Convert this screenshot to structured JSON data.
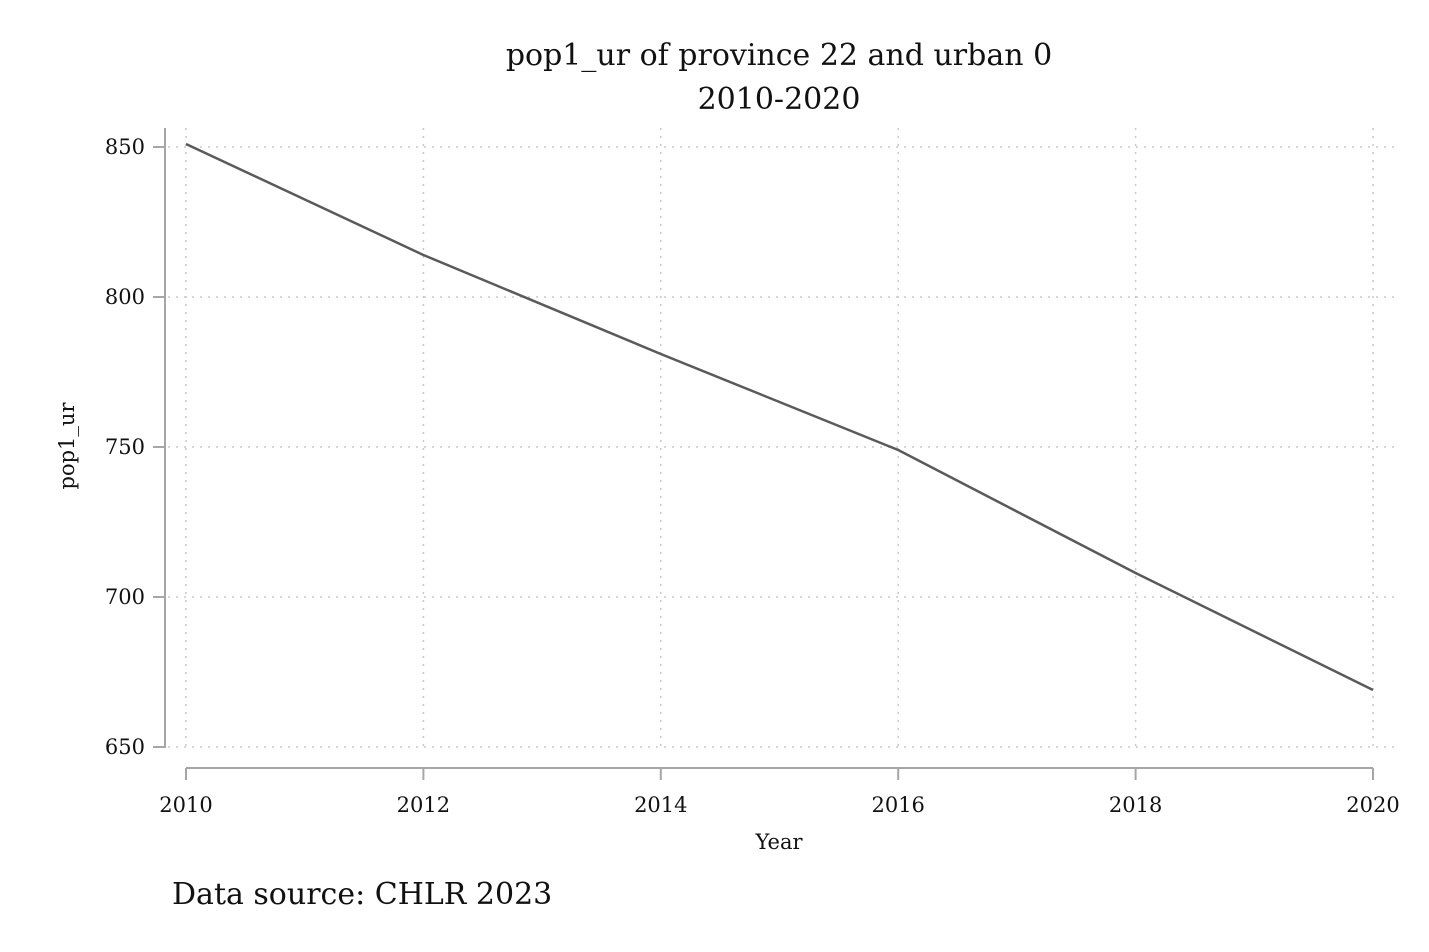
{
  "chart_data": {
    "type": "line",
    "title": "pop1_ur of province 22 and urban 0",
    "subtitle": "2010-2020",
    "xlabel": "Year",
    "ylabel": "pop1_ur",
    "xlim": [
      2010,
      2020
    ],
    "ylim": [
      650,
      850
    ],
    "x_ticks": [
      2010,
      2012,
      2014,
      2016,
      2018,
      2020
    ],
    "y_ticks": [
      650,
      700,
      750,
      800,
      850
    ],
    "grid": true,
    "series": [
      {
        "name": "pop1_ur",
        "color": "#5a5a5a",
        "x": [
          2010,
          2012,
          2014,
          2016,
          2018,
          2020
        ],
        "values": [
          851,
          814,
          781,
          749,
          708,
          669
        ]
      }
    ],
    "note": "Data source: CHLR 2023"
  }
}
